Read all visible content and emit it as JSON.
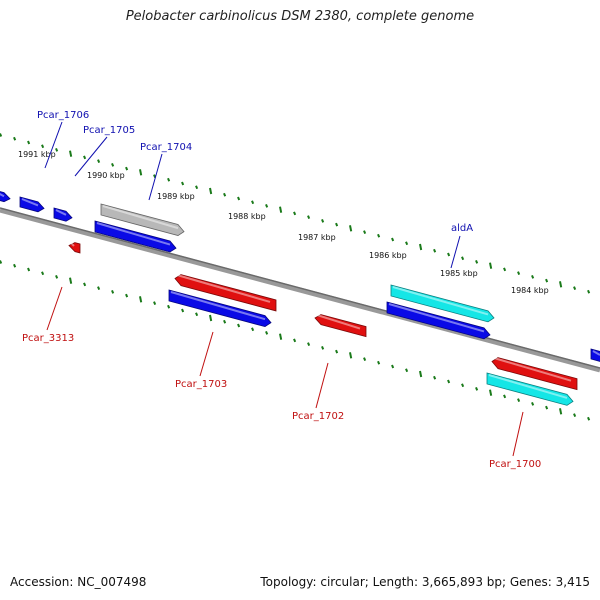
{
  "title": "Pelobacter carbinolicus DSM 2380, complete genome",
  "footer": {
    "accession": "Accession: NC_007498",
    "topology": "Topology: circular; Length: 3,665,893 bp; Genes: 3,415"
  },
  "scale_labels": [
    "1991 kbp",
    "1990 kbp",
    "1989 kbp",
    "1988 kbp",
    "1987 kbp",
    "1986 kbp",
    "1985 kbp",
    "1984 kbp"
  ],
  "genes_top": [
    "Pcar_1706",
    "Pcar_1705",
    "Pcar_1704",
    "aldA"
  ],
  "genes_bottom": [
    "Pcar_3313",
    "Pcar_1703",
    "Pcar_1702",
    "Pcar_1700"
  ],
  "colors": {
    "forward": "#0a0ae6",
    "reverse": "#e01010",
    "cyan": "#15e6e6",
    "gray": "#b8b8b8",
    "backbone": "#888888",
    "ticks": "#1a7a1a",
    "label_top": "#1010b0",
    "label_bottom": "#c01010"
  }
}
